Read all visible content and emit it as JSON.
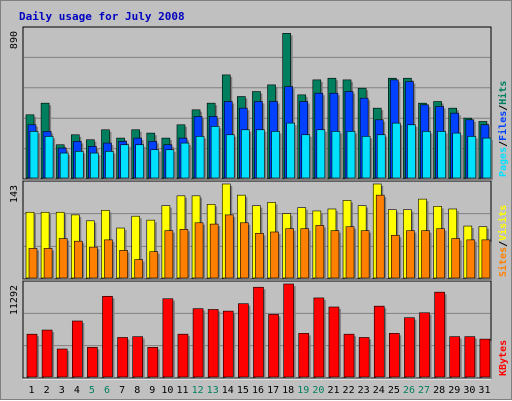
{
  "colors": {
    "background": "#c0c0c0",
    "panel": "#c0c0c0",
    "grid": "#808080",
    "title": "#0000c0",
    "hits": "#007f5f",
    "files": "#0040ff",
    "pages": "#00e0ff",
    "visits": "#ffff00",
    "sites": "#ff8000",
    "kbytes": "#ff0000",
    "weekend_tick": "#007f5f",
    "weekday_tick": "#000000"
  },
  "chart_data": {
    "type": "bar",
    "title": "Daily usage for July 2008",
    "categories": [
      "1",
      "2",
      "3",
      "4",
      "5",
      "6",
      "7",
      "8",
      "9",
      "10",
      "11",
      "12",
      "13",
      "14",
      "15",
      "16",
      "17",
      "18",
      "19",
      "20",
      "21",
      "22",
      "23",
      "24",
      "25",
      "26",
      "27",
      "28",
      "29",
      "30",
      "31"
    ],
    "weekend_days": [
      "5",
      "6",
      "12",
      "13",
      "19",
      "20",
      "26",
      "27"
    ],
    "panels": [
      {
        "name": "hits-files-pages",
        "max_label": "890",
        "ylim": [
          0,
          890
        ],
        "legend": [
          {
            "name": "Pages",
            "color_key": "pages"
          },
          {
            "name": "Files",
            "color_key": "files"
          },
          {
            "name": "Hits",
            "color_key": "hits"
          }
        ],
        "series": [
          {
            "name": "Hits",
            "color_key": "hits",
            "values": [
              380,
              450,
              200,
              260,
              230,
              290,
              240,
              290,
              270,
              240,
              320,
              410,
              450,
              620,
              490,
              520,
              560,
              870,
              500,
              590,
              600,
              590,
              540,
              420,
              600,
              600,
              450,
              460,
              420,
              360,
              340
            ]
          },
          {
            "name": "Files",
            "color_key": "files",
            "values": [
              320,
              280,
              180,
              220,
              190,
              210,
              220,
              240,
              220,
              200,
              240,
              370,
              370,
              460,
              420,
              460,
              460,
              550,
              460,
              510,
              510,
              520,
              480,
              350,
              590,
              580,
              440,
              430,
              390,
              350,
              320
            ]
          },
          {
            "name": "Pages",
            "color_key": "pages",
            "values": [
              280,
              250,
              150,
              160,
              150,
              160,
              200,
              200,
              170,
              170,
              210,
              250,
              310,
              260,
              290,
              290,
              280,
              330,
              260,
              290,
              280,
              280,
              250,
              260,
              330,
              320,
              280,
              280,
              270,
              250,
              240
            ]
          }
        ]
      },
      {
        "name": "visits-sites",
        "max_label": "143",
        "ylim": [
          0,
          143
        ],
        "legend": [
          {
            "name": "Sites",
            "color_key": "sites"
          },
          {
            "name": "Visits",
            "color_key": "visits"
          }
        ],
        "series": [
          {
            "name": "Visits",
            "color_key": "visits",
            "values": [
              100,
              100,
              100,
              96,
              87,
              103,
              76,
              94,
              88,
              110,
              125,
              125,
              112,
              143,
              126,
              110,
              115,
              98,
              107,
              102,
              105,
              118,
              110,
              143,
              104,
              104,
              120,
              109,
              105,
              79,
              78
            ]
          },
          {
            "name": "Sites",
            "color_key": "sites",
            "values": [
              45,
              45,
              60,
              56,
              47,
              58,
              42,
              28,
              40,
              72,
              74,
              84,
              82,
              96,
              84,
              68,
              70,
              75,
              75,
              80,
              72,
              78,
              72,
              126,
              65,
              72,
              72,
              75,
              60,
              58,
              58
            ]
          }
        ]
      },
      {
        "name": "kbytes",
        "max_label": "11292",
        "ylim": [
          0,
          11292
        ],
        "legend": [
          {
            "name": "KBytes",
            "color_key": "kbytes"
          }
        ],
        "series": [
          {
            "name": "KBytes",
            "color_key": "kbytes",
            "values": [
              5200,
              5700,
              3400,
              6800,
              3600,
              9800,
              4800,
              4900,
              3600,
              9500,
              5200,
              8300,
              8200,
              8000,
              8900,
              10900,
              7600,
              11292,
              5300,
              9600,
              8500,
              5200,
              4800,
              8600,
              5300,
              7200,
              7800,
              10300,
              4900,
              4900,
              4600
            ]
          }
        ]
      }
    ]
  }
}
